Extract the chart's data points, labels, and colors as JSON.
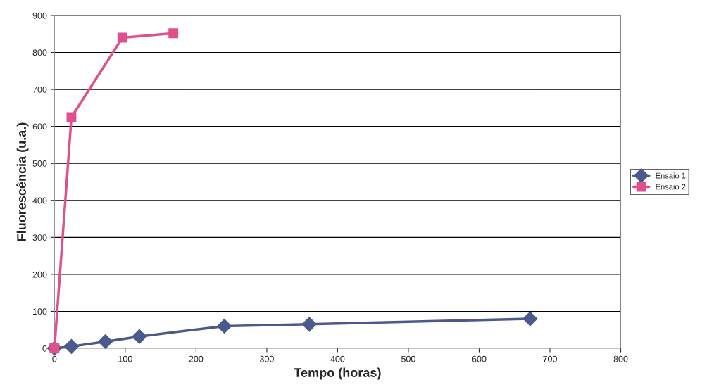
{
  "chart_data": {
    "type": "line",
    "xlabel": "Tempo (horas)",
    "ylabel": "Fluorescência (u.a.)",
    "xlim": [
      0,
      800
    ],
    "xticks": [
      0,
      100,
      200,
      300,
      400,
      500,
      600,
      700,
      800
    ],
    "ylim": [
      0,
      900
    ],
    "yticks": [
      0,
      100,
      200,
      300,
      400,
      500,
      600,
      700,
      800,
      900
    ],
    "grid": "y",
    "legend": "right",
    "series": [
      {
        "name": "Ensaio 1",
        "color": "#4a5a8c",
        "marker": "diamond",
        "x": [
          0,
          24,
          72,
          120,
          240,
          360,
          672
        ],
        "values": [
          0,
          5,
          18,
          32,
          60,
          65,
          80
        ]
      },
      {
        "name": "Ensaio 2",
        "color": "#e0508c",
        "marker": "square",
        "x": [
          0,
          24,
          96,
          168
        ],
        "values": [
          0,
          625,
          840,
          852
        ]
      }
    ]
  }
}
